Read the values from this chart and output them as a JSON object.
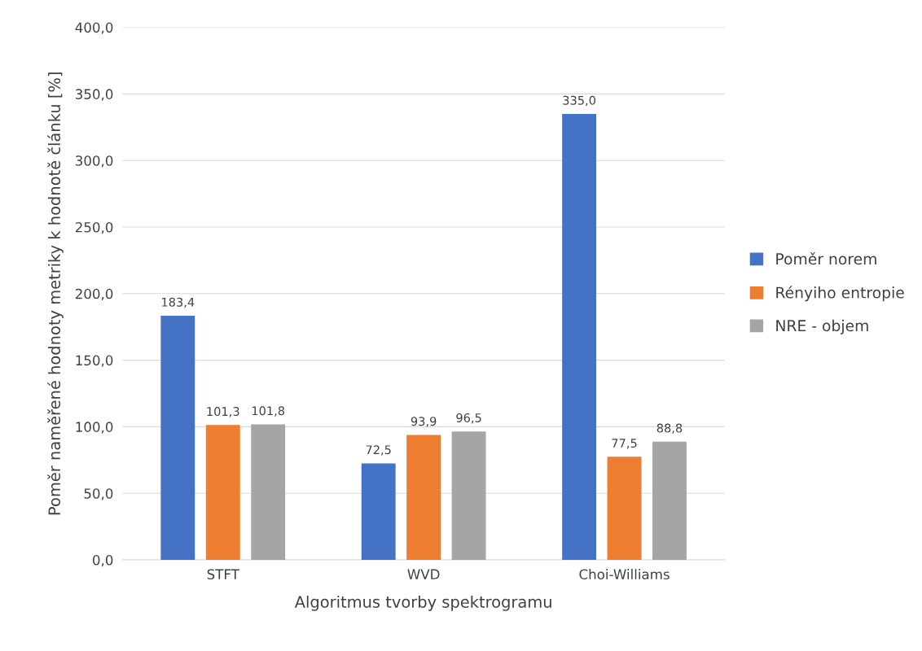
{
  "chart_data": {
    "type": "bar",
    "xlabel": "Algoritmus tvorby spektrogramu",
    "ylabel": "Poměr naměřené hodnoty metriky k hodnotě článku [%]",
    "categories": [
      "STFT",
      "WVD",
      "Choi-Williams"
    ],
    "series": [
      {
        "name": "Poměr norem",
        "color": "#4472c4",
        "values": [
          183.4,
          72.5,
          335.0
        ],
        "value_labels": [
          "183,4",
          "72,5",
          "335,0"
        ]
      },
      {
        "name": "Rényiho entropie",
        "color": "#ed7d31",
        "values": [
          101.3,
          93.9,
          77.5
        ],
        "value_labels": [
          "101,3",
          "93,9",
          "77,5"
        ]
      },
      {
        "name": "NRE - objem",
        "color": "#a5a5a5",
        "values": [
          101.8,
          96.5,
          88.8
        ],
        "value_labels": [
          "101,8",
          "96,5",
          "88,8"
        ]
      }
    ],
    "ylim": [
      0,
      400
    ],
    "yticks": [
      {
        "value": 0,
        "label": "0,0"
      },
      {
        "value": 50,
        "label": "50,0"
      },
      {
        "value": 100,
        "label": "100,0"
      },
      {
        "value": 150,
        "label": "150,0"
      },
      {
        "value": 200,
        "label": "200,0"
      },
      {
        "value": 250,
        "label": "250,0"
      },
      {
        "value": 300,
        "label": "300,0"
      },
      {
        "value": 350,
        "label": "350,0"
      },
      {
        "value": 400,
        "label": "400,0"
      }
    ],
    "grid": "y",
    "legend": "right"
  }
}
